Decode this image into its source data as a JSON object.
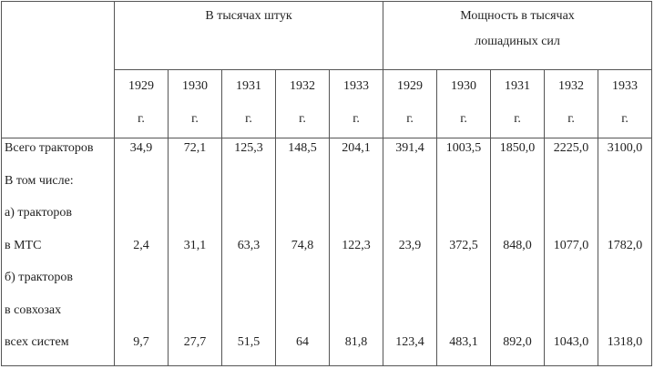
{
  "header": {
    "group_thousands_units": [
      "В тысячах штук"
    ],
    "group_power": [
      "Мощность в тысячах",
      "лошадиных сил"
    ],
    "year_suffix": "г."
  },
  "years": [
    "1929",
    "1930",
    "1931",
    "1932",
    "1933"
  ],
  "rows": [
    {
      "label": "Всего тракторов",
      "values": [
        "34,9",
        "72,1",
        "125,3",
        "148,5",
        "204,1",
        "391,4",
        "1003,5",
        "1850,0",
        "2225,0",
        "3100,0"
      ]
    },
    {
      "label": "В том числе:",
      "values": [
        "",
        "",
        "",
        "",
        "",
        "",
        "",
        "",
        "",
        ""
      ]
    },
    {
      "label": "а) тракторов",
      "values": [
        "",
        "",
        "",
        "",
        "",
        "",
        "",
        "",
        "",
        ""
      ]
    },
    {
      "label": "в МТС",
      "values": [
        "2,4",
        "31,1",
        "63,3",
        "74,8",
        "122,3",
        "23,9",
        "372,5",
        "848,0",
        "1077,0",
        "1782,0"
      ]
    },
    {
      "label": "б) тракторов",
      "values": [
        "",
        "",
        "",
        "",
        "",
        "",
        "",
        "",
        "",
        ""
      ]
    },
    {
      "label": "в совхозах",
      "values": [
        "",
        "",
        "",
        "",
        "",
        "",
        "",
        "",
        "",
        ""
      ]
    },
    {
      "label": "всех систем",
      "values": [
        "9,7",
        "27,7",
        "51,5",
        "64",
        "81,8",
        "123,4",
        "483,1",
        "892,0",
        "1043,0",
        "1318,0"
      ]
    }
  ]
}
